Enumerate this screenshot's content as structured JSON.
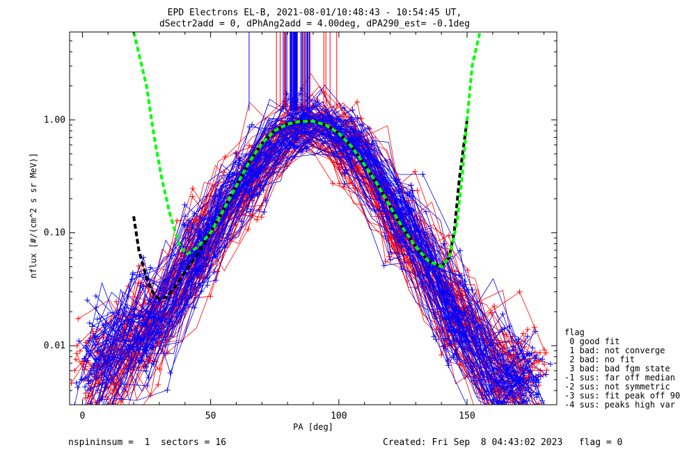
{
  "chart_data": {
    "type": "line",
    "title": "EPD Electrons EL-B, 2021-08-01/10:48:43 - 10:54:45 UT,",
    "subtitle": "dSectr2add = 0, dPhAng2add = 4.00deg, dPA290_est=  -0.1deg",
    "xlabel": "PA [deg]",
    "ylabel": "nflux [#/(cm^2 s sr MeV)]",
    "xlim": [
      -5,
      185
    ],
    "ylim": [
      0.003,
      6.0
    ],
    "yscale": "log",
    "x_ticks": [
      0,
      50,
      100,
      150
    ],
    "x_tick_labels": [
      "0",
      "50",
      "100",
      "150"
    ],
    "y_ticks": [
      1.0,
      0.1,
      0.01
    ],
    "y_tick_labels": [
      "1.00",
      "0.10",
      "0.01"
    ],
    "grid": false,
    "colors": {
      "red_traces": "#ff0000",
      "blue_traces": "#0000ff",
      "fit_green": "#00ff00",
      "fit_black": "#000000"
    },
    "series": [
      {
        "x": [
          5,
          15,
          25,
          35,
          45,
          55,
          65,
          75,
          85,
          95,
          105,
          115,
          125,
          135,
          145,
          155,
          165,
          175
        ],
        "values": [
          0.005,
          0.008,
          0.013,
          0.025,
          0.06,
          0.13,
          0.28,
          0.55,
          0.86,
          0.86,
          0.55,
          0.28,
          0.12,
          0.05,
          0.02,
          0.01,
          0.006,
          0.004
        ]
      },
      {
        "x": [
          5,
          15,
          25,
          35,
          45,
          55,
          65,
          75,
          85,
          95,
          105,
          115,
          125,
          135,
          145,
          155,
          165,
          175
        ],
        "values": [
          0.006,
          0.01,
          0.015,
          0.03,
          0.07,
          0.16,
          0.35,
          0.65,
          0.92,
          0.9,
          0.62,
          0.3,
          0.13,
          0.05,
          0.02,
          0.009,
          0.005,
          0.004
        ]
      },
      {
        "x": [
          20,
          22,
          25,
          28,
          30,
          33,
          36,
          40,
          45,
          50,
          55,
          60,
          65,
          70,
          75,
          80,
          85,
          90,
          95,
          100,
          105,
          110,
          115,
          120,
          125,
          130,
          135,
          140,
          143,
          145,
          147,
          150
        ],
        "values": [
          0.14,
          0.07,
          0.04,
          0.028,
          0.026,
          0.027,
          0.033,
          0.045,
          0.065,
          0.1,
          0.16,
          0.26,
          0.42,
          0.62,
          0.8,
          0.92,
          0.97,
          0.97,
          0.9,
          0.76,
          0.58,
          0.4,
          0.27,
          0.17,
          0.11,
          0.075,
          0.056,
          0.05,
          0.06,
          0.1,
          0.3,
          1.0
        ]
      },
      {
        "x": [
          20,
          25,
          28,
          31,
          34,
          38,
          41,
          45,
          50,
          55,
          60,
          65,
          70,
          75,
          80,
          85,
          90,
          95,
          100,
          105,
          110,
          115,
          120,
          125,
          130,
          135,
          140,
          143,
          146,
          148,
          150,
          152,
          155
        ],
        "values": [
          6.0,
          2.0,
          0.7,
          0.3,
          0.15,
          0.075,
          0.065,
          0.075,
          0.1,
          0.16,
          0.26,
          0.42,
          0.62,
          0.8,
          0.92,
          0.97,
          0.97,
          0.9,
          0.76,
          0.58,
          0.4,
          0.27,
          0.17,
          0.11,
          0.075,
          0.056,
          0.05,
          0.06,
          0.12,
          0.3,
          1.0,
          3.0,
          6.0
        ]
      }
    ],
    "legend": {
      "title": "flag",
      "entries": [
        " 0 good fit",
        " 1 bad: not converge",
        " 2 bad: no fit",
        " 3 bad: bad fgm state",
        "-1 sus: far off median",
        "-2 sus: not symmetric",
        "-3 sus: fit peak off 90",
        "-4 sus: peaks high var"
      ]
    }
  },
  "footer": {
    "left": "nspininsum =  1  sectors = 16",
    "right": "Created: Fri Sep  8 04:43:02 2023   flag = 0"
  }
}
